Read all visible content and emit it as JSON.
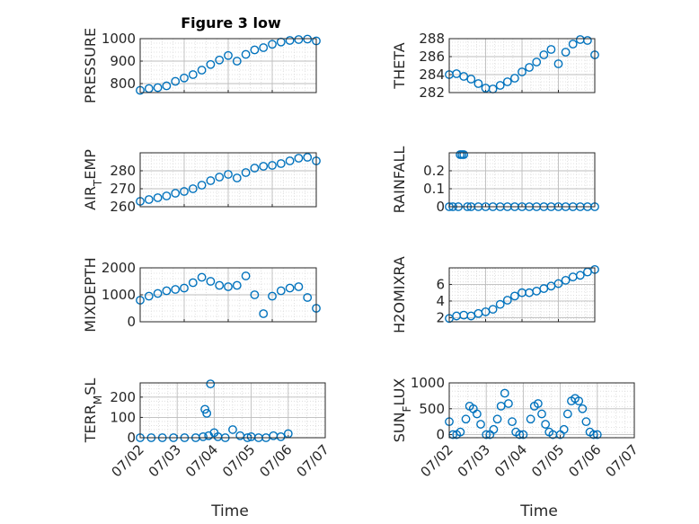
{
  "figure": {
    "title": "Figure 3 low"
  },
  "chart_data": [
    {
      "type": "scatter",
      "ylabel": "PRESSURE",
      "ylim": [
        760,
        1000
      ],
      "yticks": [
        800,
        900,
        1000
      ],
      "xlim": [
        "07/02",
        "07/06"
      ],
      "xticks": [
        "07/02",
        "07/03",
        "07/04",
        "07/05",
        "07/06"
      ],
      "grid": true,
      "x": [
        0.0,
        0.2,
        0.4,
        0.6,
        0.8,
        1.0,
        1.2,
        1.4,
        1.6,
        1.8,
        2.0,
        2.2,
        2.4,
        2.6,
        2.8,
        3.0,
        3.2,
        3.4,
        3.6,
        3.8,
        4.0
      ],
      "y": [
        770,
        778,
        782,
        790,
        810,
        825,
        840,
        860,
        885,
        905,
        925,
        900,
        930,
        950,
        960,
        975,
        985,
        992,
        996,
        998,
        990
      ]
    },
    {
      "type": "scatter",
      "ylabel": "THETA",
      "ylim": [
        282,
        288
      ],
      "yticks": [
        282,
        284,
        286,
        288
      ],
      "xlim": [
        "07/02",
        "07/06"
      ],
      "xticks": [
        "07/02",
        "07/03",
        "07/04",
        "07/05",
        "07/06"
      ],
      "grid": true,
      "x": [
        0.0,
        0.2,
        0.4,
        0.6,
        0.8,
        1.0,
        1.2,
        1.4,
        1.6,
        1.8,
        2.0,
        2.2,
        2.4,
        2.6,
        2.8,
        3.0,
        3.2,
        3.4,
        3.6,
        3.8,
        4.0
      ],
      "y": [
        284.0,
        284.1,
        283.8,
        283.5,
        283.0,
        282.5,
        282.4,
        282.8,
        283.2,
        283.6,
        284.3,
        284.8,
        285.4,
        286.2,
        286.8,
        285.2,
        286.5,
        287.4,
        287.9,
        287.8,
        286.2
      ]
    },
    {
      "type": "scatter",
      "ylabel": "AIR_TEMP",
      "ylim": [
        260,
        290
      ],
      "yticks": [
        260,
        270,
        280
      ],
      "xlim": [
        "07/02",
        "07/06"
      ],
      "xticks": [
        "07/02",
        "07/03",
        "07/04",
        "07/05",
        "07/06"
      ],
      "grid": true,
      "x": [
        0.0,
        0.2,
        0.4,
        0.6,
        0.8,
        1.0,
        1.2,
        1.4,
        1.6,
        1.8,
        2.0,
        2.2,
        2.4,
        2.6,
        2.8,
        3.0,
        3.2,
        3.4,
        3.6,
        3.8,
        4.0
      ],
      "y": [
        263,
        264,
        265,
        266,
        267.5,
        268.5,
        270,
        272,
        274.5,
        276.5,
        278,
        276,
        279,
        281.5,
        282.5,
        283,
        284,
        285.5,
        287,
        287.5,
        285.5
      ]
    },
    {
      "type": "scatter",
      "ylabel": "RAINFALL",
      "ylim": [
        0,
        0.3
      ],
      "yticks": [
        0,
        0.1,
        0.2
      ],
      "xlim": [
        "07/02",
        "07/06"
      ],
      "xticks": [
        "07/02",
        "07/03",
        "07/04",
        "07/05",
        "07/06"
      ],
      "grid": true,
      "x": [
        0.0,
        0.1,
        0.25,
        0.3,
        0.35,
        0.4,
        0.5,
        0.6,
        0.8,
        1.0,
        1.2,
        1.4,
        1.6,
        1.8,
        2.0,
        2.2,
        2.4,
        2.6,
        2.8,
        3.0,
        3.2,
        3.4,
        3.6,
        3.8,
        4.0
      ],
      "y": [
        0,
        0,
        0,
        0.29,
        0.29,
        0.29,
        0,
        0,
        0,
        0,
        0,
        0,
        0,
        0,
        0,
        0,
        0,
        0,
        0,
        0,
        0,
        0,
        0,
        0,
        0
      ]
    },
    {
      "type": "scatter",
      "ylabel": "MIXDEPTH",
      "ylim": [
        0,
        2000
      ],
      "yticks": [
        0,
        1000,
        2000
      ],
      "xlim": [
        "07/02",
        "07/06"
      ],
      "xticks": [
        "07/02",
        "07/03",
        "07/04",
        "07/05",
        "07/06"
      ],
      "grid": true,
      "x": [
        0.0,
        0.2,
        0.4,
        0.6,
        0.8,
        1.0,
        1.2,
        1.4,
        1.6,
        1.8,
        2.0,
        2.2,
        2.4,
        2.6,
        2.8,
        3.0,
        3.2,
        3.4,
        3.6,
        3.8,
        4.0
      ],
      "y": [
        800,
        950,
        1050,
        1150,
        1200,
        1250,
        1450,
        1650,
        1500,
        1350,
        1300,
        1350,
        1700,
        1000,
        300,
        950,
        1150,
        1250,
        1300,
        900,
        500
      ]
    },
    {
      "type": "scatter",
      "ylabel": "H2OMIXRA",
      "ylim": [
        1.5,
        8
      ],
      "yticks": [
        2,
        4,
        6
      ],
      "xlim": [
        "07/02",
        "07/06"
      ],
      "xticks": [
        "07/02",
        "07/03",
        "07/04",
        "07/05",
        "07/06"
      ],
      "grid": true,
      "x": [
        0.0,
        0.2,
        0.4,
        0.6,
        0.8,
        1.0,
        1.2,
        1.4,
        1.6,
        1.8,
        2.0,
        2.2,
        2.4,
        2.6,
        2.8,
        3.0,
        3.2,
        3.4,
        3.6,
        3.8,
        4.0
      ],
      "y": [
        1.9,
        2.2,
        2.3,
        2.2,
        2.5,
        2.7,
        3.0,
        3.6,
        4.1,
        4.6,
        5.0,
        5.0,
        5.2,
        5.5,
        5.8,
        6.1,
        6.5,
        6.9,
        7.1,
        7.5,
        7.8
      ]
    },
    {
      "type": "scatter",
      "ylabel": "TERR_MSL",
      "ylim": [
        0,
        270
      ],
      "yticks": [
        0,
        100,
        200
      ],
      "xlim": [
        "07/02",
        "07/07"
      ],
      "xticks": [
        "07/02",
        "07/03",
        "07/04",
        "07/05",
        "07/06",
        "07/07"
      ],
      "grid": true,
      "x": [
        0.0,
        0.3,
        0.6,
        0.9,
        1.2,
        1.5,
        1.7,
        1.75,
        1.8,
        1.85,
        1.9,
        2.0,
        2.1,
        2.3,
        2.5,
        2.7,
        2.9,
        3.0,
        3.2,
        3.4,
        3.6,
        3.8,
        4.0
      ],
      "y": [
        0,
        0,
        0,
        0,
        0,
        0,
        5,
        140,
        120,
        10,
        265,
        25,
        5,
        0,
        40,
        10,
        0,
        5,
        0,
        0,
        10,
        5,
        20
      ]
    },
    {
      "type": "scatter",
      "ylabel": "SUN_FLUX",
      "ylim": [
        -60,
        1000
      ],
      "yticks": [
        0,
        500,
        1000
      ],
      "xlim": [
        "07/02",
        "07/07"
      ],
      "xticks": [
        "07/02",
        "07/03",
        "07/04",
        "07/05",
        "07/06",
        "07/07"
      ],
      "grid": true,
      "x": [
        0.0,
        0.1,
        0.2,
        0.3,
        0.45,
        0.55,
        0.65,
        0.75,
        0.85,
        1.0,
        1.1,
        1.2,
        1.3,
        1.4,
        1.5,
        1.6,
        1.7,
        1.8,
        1.9,
        2.0,
        2.2,
        2.3,
        2.4,
        2.5,
        2.6,
        2.7,
        2.8,
        3.0,
        3.1,
        3.2,
        3.3,
        3.4,
        3.5,
        3.6,
        3.7,
        3.8,
        3.9,
        4.0
      ],
      "y": [
        250,
        0,
        0,
        50,
        300,
        550,
        500,
        400,
        200,
        0,
        0,
        100,
        300,
        550,
        800,
        600,
        250,
        50,
        0,
        0,
        300,
        550,
        600,
        400,
        200,
        50,
        0,
        0,
        100,
        400,
        650,
        700,
        650,
        500,
        250,
        50,
        0,
        0
      ]
    }
  ],
  "bottom": {
    "xlabel_left": "Time",
    "xlabel_right": "Time"
  }
}
